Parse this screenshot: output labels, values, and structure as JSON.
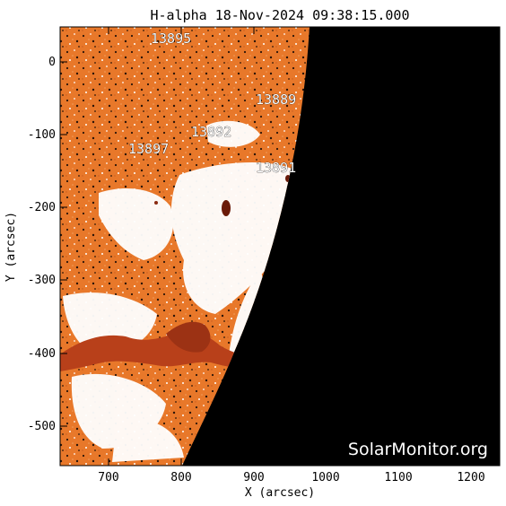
{
  "image": {
    "title": "H-alpha 18-Nov-2024 09:38:15.000",
    "x_axis_label": "X (arcsec)",
    "y_axis_label": "Y (arcsec)",
    "x_ticks": [
      "700",
      "800",
      "900",
      "1000",
      "1100",
      "1200"
    ],
    "y_ticks": [
      "0",
      "-100",
      "-200",
      "-300",
      "-400",
      "-500"
    ],
    "watermark": "SolarMonitor.org",
    "active_regions": [
      "13895",
      "13889",
      "13892",
      "13897",
      "13891"
    ],
    "colors": {
      "background": "#ffffff",
      "disk_orange": "#e8782a",
      "plage_white": "#ffffff",
      "filament_red": "#b8401a",
      "off_limb": "#000000"
    }
  }
}
